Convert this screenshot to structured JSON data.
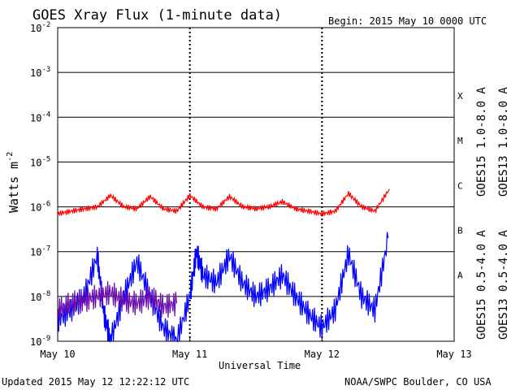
{
  "chart_data": {
    "type": "line",
    "title": "GOES Xray Flux (1-minute data)",
    "begin_label": "Begin:  2015 May 10 0000 UTC",
    "ylabel": "Watts m",
    "ylabel_superscript": "-2",
    "xlabel": "Universal Time",
    "y_scale": "log",
    "ylim": [
      1e-09,
      0.01
    ],
    "y_ticks": [
      {
        "mant": "10",
        "exp": "-9",
        "value": 1e-09
      },
      {
        "mant": "10",
        "exp": "-8",
        "value": 1e-08
      },
      {
        "mant": "10",
        "exp": "-7",
        "value": 1e-07
      },
      {
        "mant": "10",
        "exp": "-6",
        "value": 1e-06
      },
      {
        "mant": "10",
        "exp": "-5",
        "value": 1e-05
      },
      {
        "mant": "10",
        "exp": "-4",
        "value": 0.0001
      },
      {
        "mant": "10",
        "exp": "-3",
        "value": 0.001
      },
      {
        "mant": "10",
        "exp": "-2",
        "value": 0.01
      }
    ],
    "x_ticks": [
      "May 10",
      "May 11",
      "May 12",
      "May 13"
    ],
    "xlim_days": [
      0,
      3
    ],
    "flare_classes": [
      {
        "label": "A",
        "value": 3e-08
      },
      {
        "label": "B",
        "value": 3e-07
      },
      {
        "label": "C",
        "value": 3e-06
      },
      {
        "label": "M",
        "value": 3e-05
      },
      {
        "label": "X",
        "value": 0.0003
      }
    ],
    "grid": "horizontal lines at each decade; dotted day separators",
    "series": [
      {
        "name": "GOES15 1.0-8.0 A",
        "color": "#ff0000",
        "x": [
          0,
          0.1,
          0.2,
          0.3,
          0.4,
          0.5,
          0.6,
          0.7,
          0.8,
          0.9,
          1.0,
          1.1,
          1.2,
          1.3,
          1.4,
          1.5,
          1.6,
          1.7,
          1.8,
          1.9,
          2.0,
          2.1,
          2.2,
          2.3,
          2.4,
          2.51
        ],
        "y": [
          7e-07,
          8e-07,
          9e-07,
          1e-06,
          1.8e-06,
          1e-06,
          9e-07,
          1.7e-06,
          9e-07,
          8e-07,
          1.8e-06,
          1e-06,
          9e-07,
          1.7e-06,
          1e-06,
          9e-07,
          1e-06,
          1.3e-06,
          9e-07,
          8e-07,
          7e-07,
          8e-07,
          2e-06,
          1e-06,
          8e-07,
          2.5e-06
        ]
      },
      {
        "name": "GOES13 1.0-8.0 A",
        "color": "#ffa500",
        "x": [],
        "y": []
      },
      {
        "name": "GOES15 0.5-4.0 A",
        "color": "#0000ff",
        "x": [
          0,
          0.1,
          0.2,
          0.3,
          0.35,
          0.4,
          0.5,
          0.6,
          0.7,
          0.8,
          0.9,
          1.0,
          1.05,
          1.1,
          1.2,
          1.3,
          1.4,
          1.5,
          1.6,
          1.7,
          1.8,
          1.9,
          2.0,
          2.1,
          2.2,
          2.3,
          2.4,
          2.5
        ],
        "y": [
          3e-09,
          5e-09,
          1e-08,
          8e-08,
          4e-09,
          1e-09,
          1e-08,
          6e-08,
          1e-08,
          2e-09,
          1e-09,
          1e-08,
          1e-07,
          3e-08,
          2e-08,
          8e-08,
          2e-08,
          1e-08,
          1.5e-08,
          3e-08,
          1e-08,
          4e-09,
          2e-09,
          5e-09,
          9e-08,
          1e-08,
          5e-09,
          2e-07
        ]
      },
      {
        "name": "GOES13 0.5-4.0 A",
        "color": "#6a0dad",
        "x": [
          0,
          0.1,
          0.2,
          0.3,
          0.4,
          0.5,
          0.6,
          0.7,
          0.8,
          0.9
        ],
        "y": [
          5e-09,
          7e-09,
          8e-09,
          1e-08,
          1.2e-08,
          8e-09,
          7e-09,
          1e-08,
          6e-09,
          7e-09
        ]
      }
    ]
  },
  "footer": {
    "updated": "Updated 2015 May 12 12:22:12 UTC",
    "credit": "NOAA/SWPC Boulder, CO USA"
  }
}
